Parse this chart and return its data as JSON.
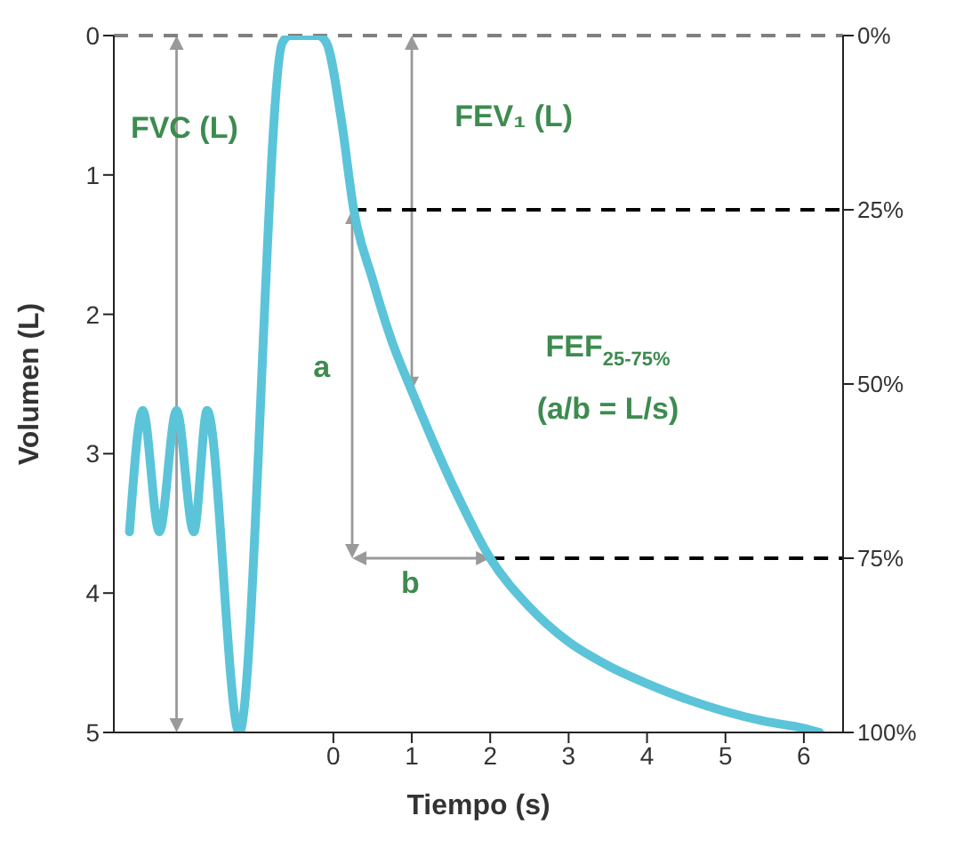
{
  "chart_data": {
    "type": "line",
    "xlabel": "Tiempo (s)",
    "ylabel": "Volumen (L)",
    "xlim": [
      -2.8,
      6.5
    ],
    "xticks": [
      0,
      1,
      2,
      3,
      4,
      5,
      6
    ],
    "ylim": [
      5,
      0
    ],
    "yticks": [
      0,
      1,
      2,
      3,
      4,
      5
    ],
    "y2lim": [
      100,
      0
    ],
    "y2ticks": [
      {
        "value": 0,
        "label": "0%"
      },
      {
        "value": 25,
        "label": "25%"
      },
      {
        "value": 50,
        "label": "50%"
      },
      {
        "value": 75,
        "label": "75%"
      },
      {
        "value": 100,
        "label": "100%"
      }
    ],
    "series": [
      {
        "color": "#5bc4d9",
        "x": [
          -2.6,
          -2.43,
          -2.22,
          -2.0,
          -1.78,
          -1.61,
          -1.2,
          -0.65,
          -0.55,
          -0.2,
          -0.09,
          0.1,
          0.26,
          0.5,
          0.75,
          1,
          1.5,
          2,
          2.5,
          3,
          3.5,
          4,
          4.5,
          5,
          5.5,
          6,
          6.2
        ],
        "values": [
          3.56,
          2.69,
          3.56,
          2.69,
          3.56,
          2.69,
          5,
          0.05,
          0,
          0,
          0.05,
          0.6,
          1.25,
          1.75,
          2.2,
          2.55,
          3.2,
          3.75,
          4.1,
          4.35,
          4.52,
          4.65,
          4.76,
          4.85,
          4.92,
          4.97,
          5
        ]
      }
    ],
    "ref_lines": [
      {
        "axis": "y",
        "value": 0,
        "color": "#808080",
        "line_style": "dashed"
      },
      {
        "axis": "y",
        "value": 1.25,
        "color": "#000000",
        "line_style": "dashed"
      },
      {
        "axis": "y",
        "value": 3.75,
        "color": "#000000",
        "line_style": "dashed"
      }
    ],
    "annotations": [
      "FVC (L)",
      "FEV₁ (L)",
      "a",
      "b",
      "FEF$_{25-75%}$",
      "(a/b = L/s)"
    ],
    "grid": false,
    "marker": "none",
    "line_style": "solid"
  }
}
